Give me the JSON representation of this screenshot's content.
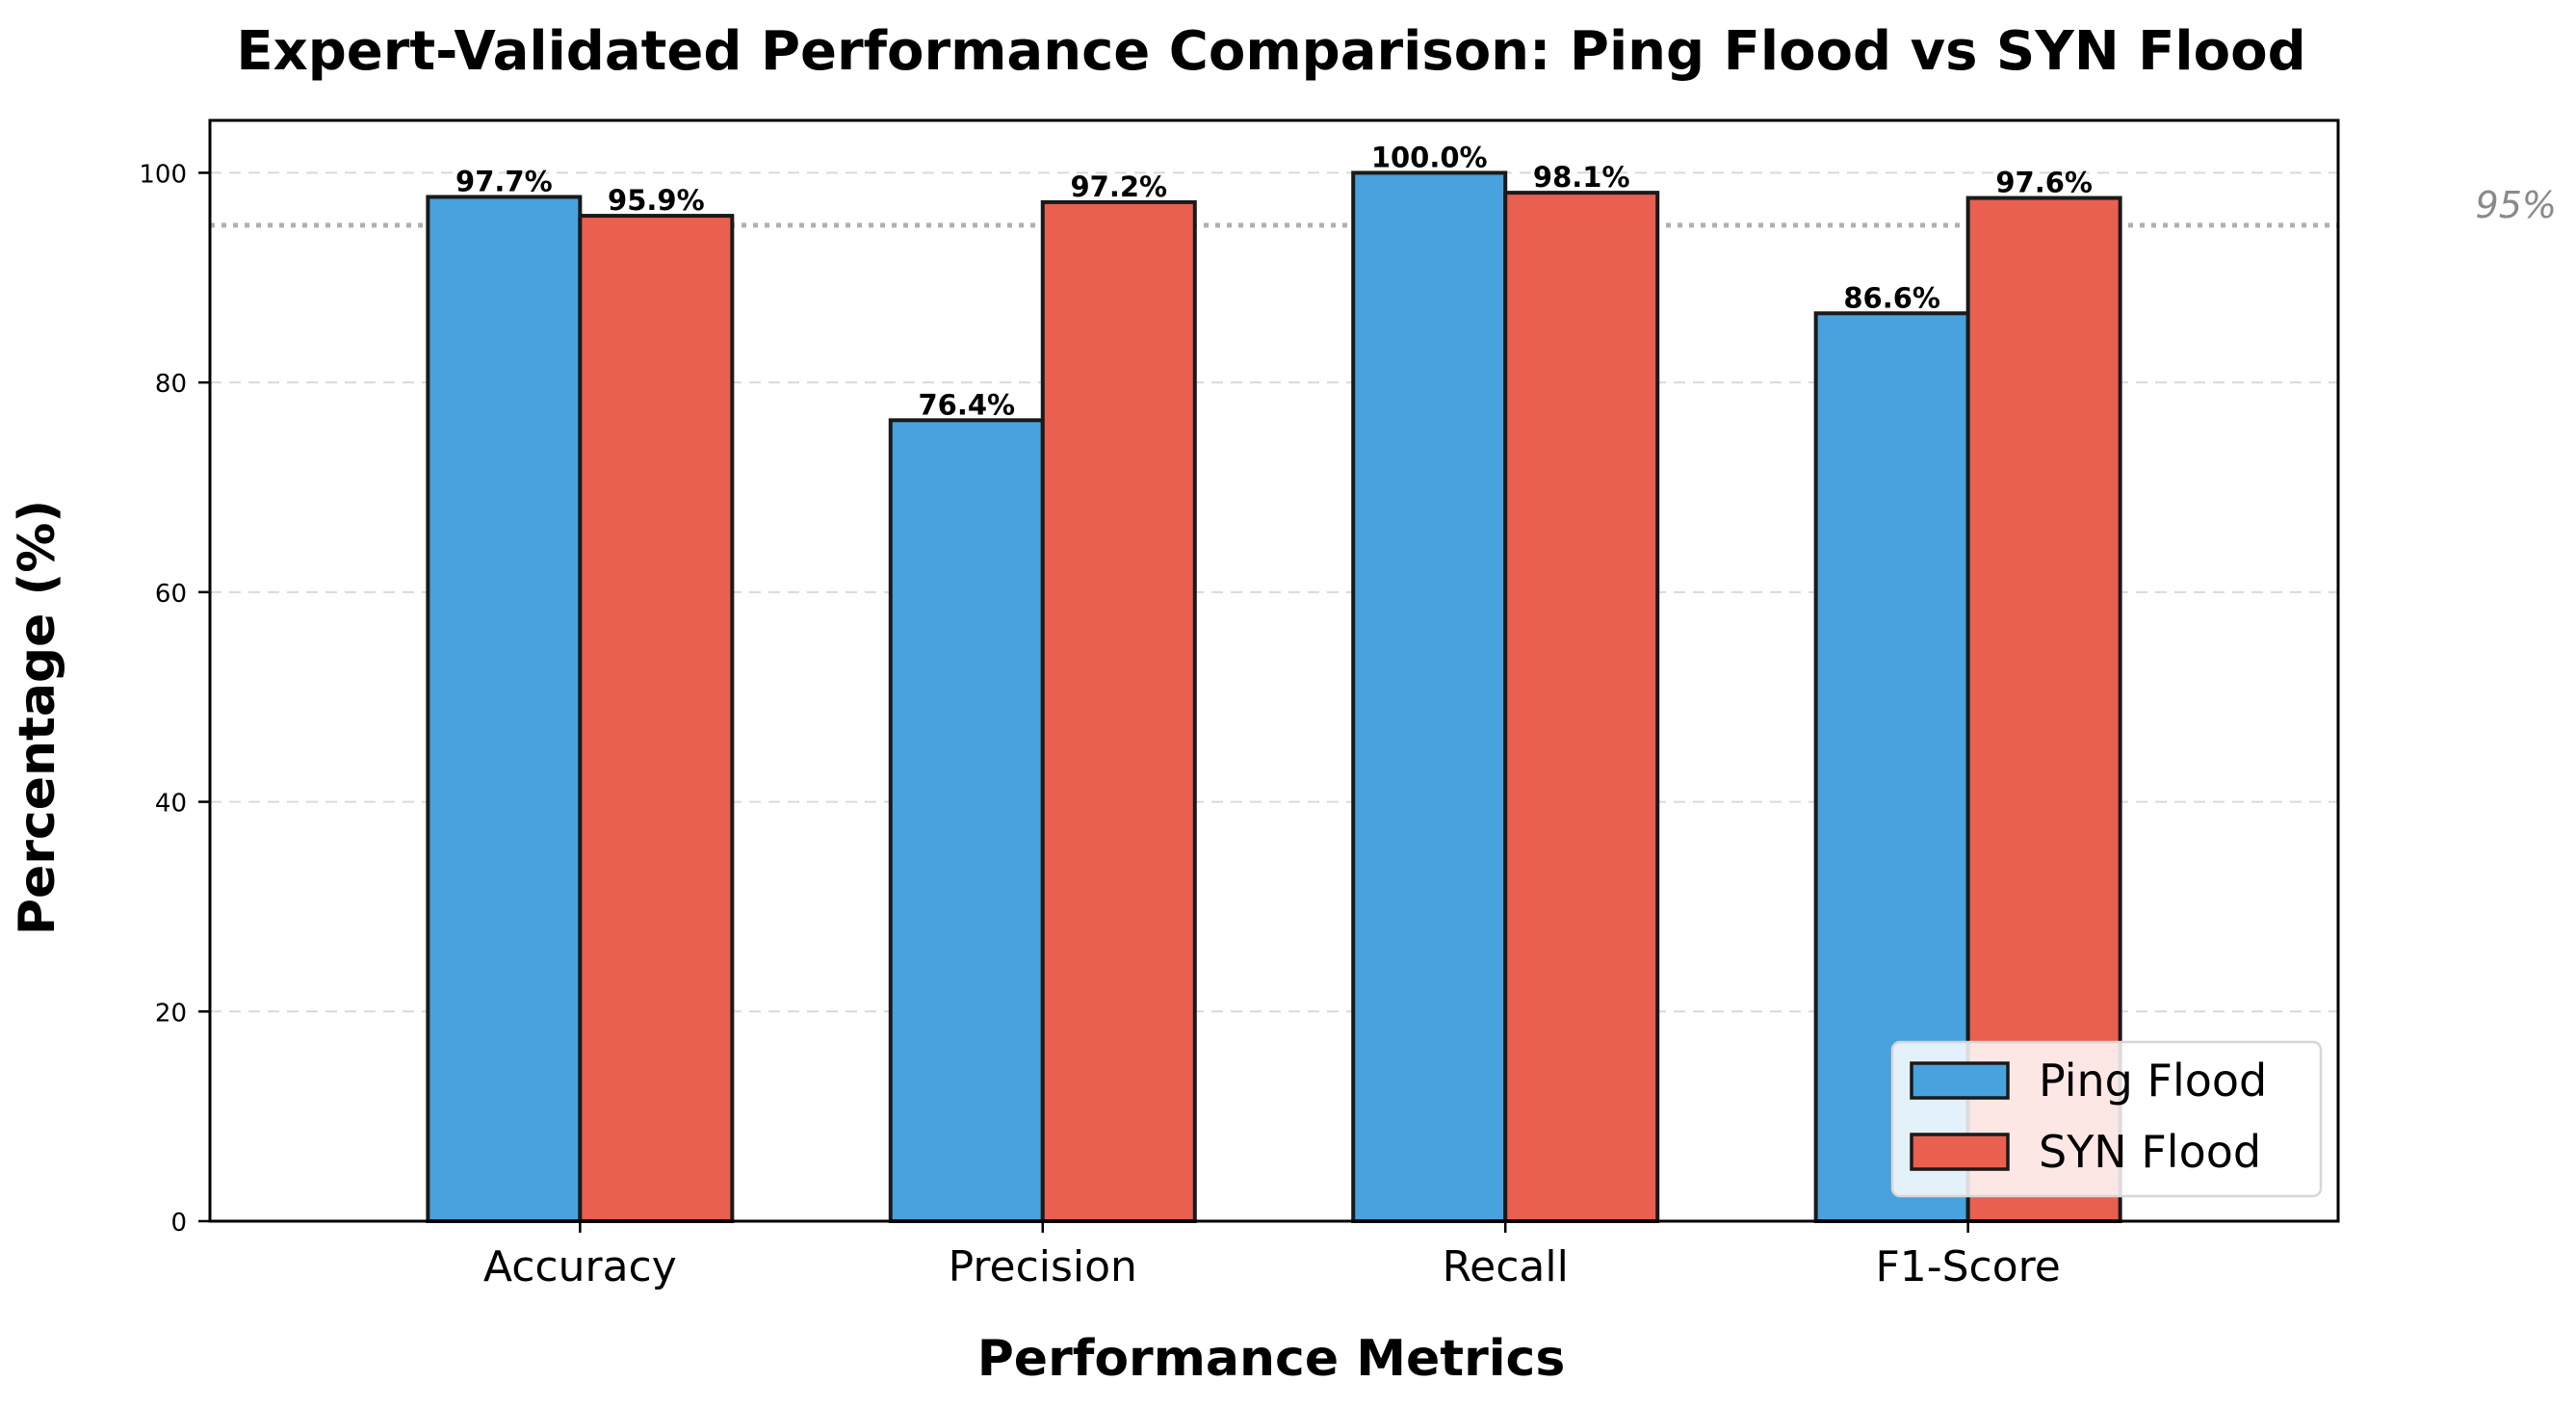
{
  "chart_data": {
    "type": "bar",
    "title": "Expert-Validated Performance Comparison: Ping Flood vs SYN Flood",
    "xlabel": "Performance Metrics",
    "ylabel": "Percentage (%)",
    "categories": [
      "Accuracy",
      "Precision",
      "Recall",
      "F1-Score"
    ],
    "series": [
      {
        "name": "Ping Flood",
        "color": "#48a2de",
        "values": [
          97.7,
          76.4,
          100.0,
          86.6
        ],
        "labels": [
          "97.7%",
          "76.4%",
          "100.0%",
          "86.6%"
        ]
      },
      {
        "name": "SYN Flood",
        "color": "#e95f50",
        "values": [
          95.9,
          97.2,
          98.1,
          97.6
        ],
        "labels": [
          "95.9%",
          "97.2%",
          "98.1%",
          "97.6%"
        ]
      }
    ],
    "ylim": [
      0,
      105
    ],
    "yticks": [
      0,
      20,
      40,
      60,
      80,
      100
    ],
    "ytick_labels": [
      "0",
      "20",
      "40",
      "60",
      "80",
      "100"
    ],
    "grid": "y-dashed",
    "legend_position": "lower-right",
    "reference_line": {
      "value": 95,
      "label": "95%",
      "color": "#b0b0b0",
      "style": "dotted"
    }
  }
}
